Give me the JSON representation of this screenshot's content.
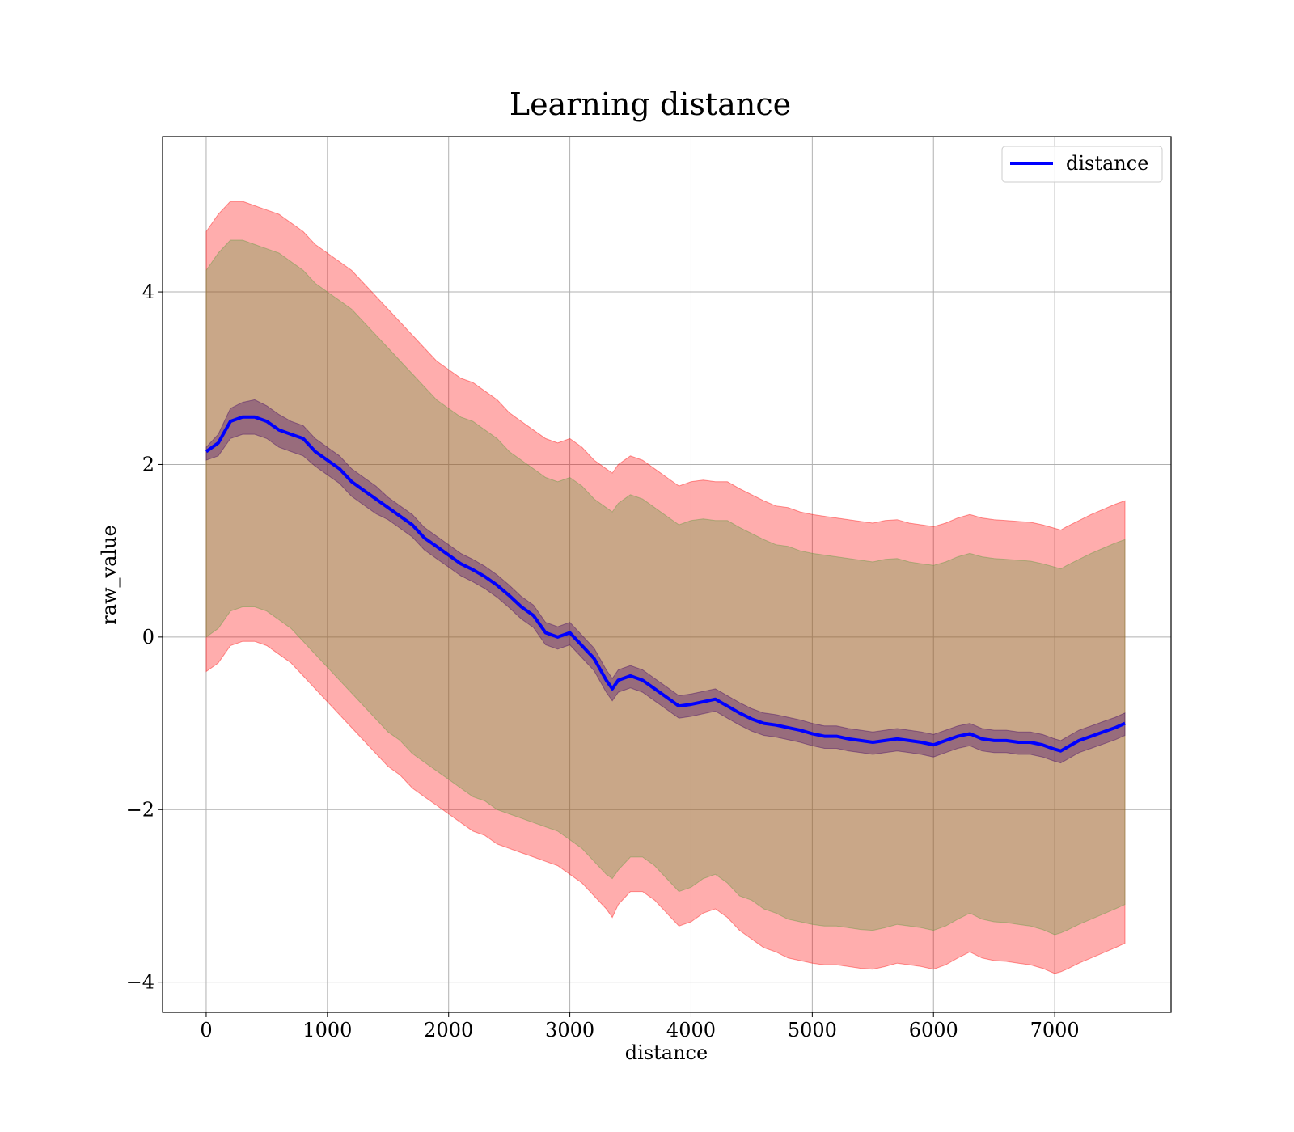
{
  "chart_data": {
    "type": "line",
    "title": "Learning distance",
    "xlabel": "distance",
    "ylabel": "raw_value",
    "xlim": [
      -360,
      7960
    ],
    "ylim": [
      -4.35,
      5.8
    ],
    "xticks": [
      0,
      1000,
      2000,
      3000,
      4000,
      5000,
      6000,
      7000
    ],
    "xtick_labels": [
      "0",
      "1000",
      "2000",
      "3000",
      "4000",
      "5000",
      "6000",
      "7000"
    ],
    "yticks": [
      -4,
      -2,
      0,
      2,
      4
    ],
    "ytick_labels": [
      "−4",
      "−2",
      "0",
      "2",
      "4"
    ],
    "grid": true,
    "legend": {
      "position": "top-right",
      "entries": [
        "distance"
      ]
    },
    "x": [
      0,
      100,
      200,
      300,
      400,
      500,
      600,
      700,
      800,
      900,
      1000,
      1100,
      1200,
      1300,
      1400,
      1500,
      1600,
      1700,
      1800,
      1900,
      2000,
      2100,
      2200,
      2300,
      2400,
      2500,
      2600,
      2700,
      2800,
      2900,
      3000,
      3100,
      3200,
      3300,
      3350,
      3400,
      3500,
      3600,
      3700,
      3800,
      3900,
      4000,
      4100,
      4200,
      4300,
      4400,
      4500,
      4600,
      4700,
      4800,
      4900,
      5000,
      5100,
      5200,
      5300,
      5400,
      5500,
      5600,
      5700,
      5800,
      5900,
      6000,
      6100,
      6200,
      6300,
      6400,
      6500,
      6600,
      6700,
      6800,
      6900,
      7000,
      7050,
      7100,
      7200,
      7300,
      7400,
      7500,
      7580
    ],
    "series": [
      {
        "name": "distance",
        "color": "#0000ff",
        "values": [
          2.15,
          2.25,
          2.5,
          2.55,
          2.55,
          2.5,
          2.4,
          2.35,
          2.3,
          2.15,
          2.05,
          1.95,
          1.8,
          1.7,
          1.6,
          1.5,
          1.4,
          1.3,
          1.15,
          1.05,
          0.95,
          0.85,
          0.78,
          0.7,
          0.6,
          0.48,
          0.35,
          0.25,
          0.05,
          0.0,
          0.05,
          -0.1,
          -0.25,
          -0.5,
          -0.6,
          -0.5,
          -0.45,
          -0.5,
          -0.6,
          -0.7,
          -0.8,
          -0.78,
          -0.75,
          -0.72,
          -0.8,
          -0.88,
          -0.95,
          -1.0,
          -1.02,
          -1.05,
          -1.08,
          -1.12,
          -1.15,
          -1.15,
          -1.18,
          -1.2,
          -1.22,
          -1.2,
          -1.18,
          -1.2,
          -1.22,
          -1.25,
          -1.2,
          -1.15,
          -1.12,
          -1.18,
          -1.2,
          -1.2,
          -1.22,
          -1.22,
          -1.25,
          -1.3,
          -1.32,
          -1.28,
          -1.2,
          -1.15,
          -1.1,
          -1.05,
          -1.0
        ]
      }
    ],
    "bands": [
      {
        "color": "#ff0000",
        "opacity": 0.32,
        "upper": [
          4.7,
          4.9,
          5.05,
          5.05,
          5.0,
          4.95,
          4.9,
          4.8,
          4.7,
          4.55,
          4.45,
          4.35,
          4.25,
          4.1,
          3.95,
          3.8,
          3.65,
          3.5,
          3.35,
          3.2,
          3.1,
          3.0,
          2.95,
          2.85,
          2.75,
          2.6,
          2.5,
          2.4,
          2.3,
          2.25,
          2.3,
          2.2,
          2.05,
          1.95,
          1.9,
          2.0,
          2.1,
          2.05,
          1.95,
          1.85,
          1.75,
          1.8,
          1.82,
          1.8,
          1.8,
          1.72,
          1.65,
          1.58,
          1.52,
          1.5,
          1.45,
          1.42,
          1.4,
          1.38,
          1.36,
          1.34,
          1.32,
          1.35,
          1.36,
          1.32,
          1.3,
          1.28,
          1.32,
          1.38,
          1.42,
          1.38,
          1.36,
          1.35,
          1.34,
          1.33,
          1.3,
          1.26,
          1.24,
          1.28,
          1.35,
          1.42,
          1.48,
          1.54,
          1.58
        ],
        "lower": [
          -0.4,
          -0.3,
          -0.1,
          -0.05,
          -0.05,
          -0.1,
          -0.2,
          -0.3,
          -0.45,
          -0.6,
          -0.75,
          -0.9,
          -1.05,
          -1.2,
          -1.35,
          -1.5,
          -1.6,
          -1.75,
          -1.85,
          -1.95,
          -2.05,
          -2.15,
          -2.25,
          -2.3,
          -2.4,
          -2.45,
          -2.5,
          -2.55,
          -2.6,
          -2.65,
          -2.75,
          -2.85,
          -3.0,
          -3.15,
          -3.25,
          -3.1,
          -2.95,
          -2.95,
          -3.05,
          -3.2,
          -3.35,
          -3.3,
          -3.2,
          -3.15,
          -3.25,
          -3.4,
          -3.5,
          -3.6,
          -3.65,
          -3.72,
          -3.75,
          -3.78,
          -3.8,
          -3.8,
          -3.82,
          -3.84,
          -3.85,
          -3.82,
          -3.78,
          -3.8,
          -3.82,
          -3.85,
          -3.8,
          -3.72,
          -3.65,
          -3.72,
          -3.75,
          -3.76,
          -3.78,
          -3.8,
          -3.84,
          -3.9,
          -3.88,
          -3.85,
          -3.78,
          -3.72,
          -3.66,
          -3.6,
          -3.55
        ]
      },
      {
        "color": "#5a9a3c",
        "opacity": 0.33,
        "upper": [
          4.25,
          4.45,
          4.6,
          4.6,
          4.55,
          4.5,
          4.45,
          4.35,
          4.25,
          4.1,
          4.0,
          3.9,
          3.8,
          3.65,
          3.5,
          3.35,
          3.2,
          3.05,
          2.9,
          2.75,
          2.65,
          2.55,
          2.5,
          2.4,
          2.3,
          2.15,
          2.05,
          1.95,
          1.85,
          1.8,
          1.85,
          1.75,
          1.6,
          1.5,
          1.45,
          1.55,
          1.65,
          1.6,
          1.5,
          1.4,
          1.3,
          1.35,
          1.37,
          1.35,
          1.35,
          1.27,
          1.2,
          1.13,
          1.07,
          1.05,
          1.0,
          0.97,
          0.95,
          0.93,
          0.91,
          0.89,
          0.87,
          0.9,
          0.91,
          0.87,
          0.85,
          0.83,
          0.87,
          0.93,
          0.97,
          0.93,
          0.91,
          0.9,
          0.89,
          0.88,
          0.85,
          0.81,
          0.79,
          0.83,
          0.9,
          0.97,
          1.03,
          1.09,
          1.13
        ],
        "lower": [
          0.0,
          0.1,
          0.3,
          0.35,
          0.35,
          0.3,
          0.2,
          0.1,
          -0.05,
          -0.2,
          -0.35,
          -0.5,
          -0.65,
          -0.8,
          -0.95,
          -1.1,
          -1.2,
          -1.35,
          -1.45,
          -1.55,
          -1.65,
          -1.75,
          -1.85,
          -1.9,
          -2.0,
          -2.05,
          -2.1,
          -2.15,
          -2.2,
          -2.25,
          -2.35,
          -2.45,
          -2.6,
          -2.75,
          -2.8,
          -2.7,
          -2.55,
          -2.55,
          -2.65,
          -2.8,
          -2.95,
          -2.9,
          -2.8,
          -2.75,
          -2.85,
          -3.0,
          -3.05,
          -3.15,
          -3.2,
          -3.27,
          -3.3,
          -3.33,
          -3.35,
          -3.35,
          -3.37,
          -3.39,
          -3.4,
          -3.37,
          -3.33,
          -3.35,
          -3.37,
          -3.4,
          -3.35,
          -3.27,
          -3.2,
          -3.27,
          -3.3,
          -3.31,
          -3.33,
          -3.35,
          -3.39,
          -3.45,
          -3.43,
          -3.4,
          -3.33,
          -3.27,
          -3.21,
          -3.15,
          -3.1
        ]
      },
      {
        "color": "#3d0066",
        "opacity": 0.35,
        "upper": [
          2.2,
          2.35,
          2.65,
          2.72,
          2.75,
          2.68,
          2.58,
          2.5,
          2.45,
          2.3,
          2.2,
          2.1,
          1.95,
          1.85,
          1.75,
          1.62,
          1.52,
          1.42,
          1.27,
          1.17,
          1.07,
          0.97,
          0.9,
          0.82,
          0.72,
          0.6,
          0.47,
          0.37,
          0.17,
          0.12,
          0.17,
          0.02,
          -0.13,
          -0.38,
          -0.48,
          -0.38,
          -0.33,
          -0.38,
          -0.48,
          -0.58,
          -0.68,
          -0.66,
          -0.63,
          -0.6,
          -0.68,
          -0.76,
          -0.83,
          -0.88,
          -0.9,
          -0.93,
          -0.96,
          -1.0,
          -1.03,
          -1.03,
          -1.06,
          -1.08,
          -1.1,
          -1.08,
          -1.06,
          -1.08,
          -1.1,
          -1.13,
          -1.08,
          -1.03,
          -1.0,
          -1.06,
          -1.08,
          -1.08,
          -1.1,
          -1.1,
          -1.13,
          -1.18,
          -1.2,
          -1.16,
          -1.08,
          -1.03,
          -0.98,
          -0.93,
          -0.88
        ],
        "lower": [
          2.05,
          2.1,
          2.3,
          2.35,
          2.35,
          2.3,
          2.2,
          2.15,
          2.1,
          1.98,
          1.88,
          1.78,
          1.63,
          1.53,
          1.43,
          1.36,
          1.26,
          1.16,
          1.01,
          0.91,
          0.81,
          0.71,
          0.64,
          0.56,
          0.46,
          0.34,
          0.21,
          0.11,
          -0.09,
          -0.14,
          -0.09,
          -0.24,
          -0.39,
          -0.64,
          -0.74,
          -0.64,
          -0.59,
          -0.64,
          -0.74,
          -0.84,
          -0.94,
          -0.92,
          -0.89,
          -0.86,
          -0.94,
          -1.02,
          -1.09,
          -1.14,
          -1.16,
          -1.19,
          -1.22,
          -1.26,
          -1.29,
          -1.29,
          -1.32,
          -1.34,
          -1.36,
          -1.34,
          -1.32,
          -1.34,
          -1.36,
          -1.39,
          -1.34,
          -1.29,
          -1.26,
          -1.32,
          -1.34,
          -1.34,
          -1.36,
          -1.36,
          -1.39,
          -1.44,
          -1.46,
          -1.42,
          -1.34,
          -1.29,
          -1.24,
          -1.19,
          -1.14
        ]
      }
    ]
  }
}
